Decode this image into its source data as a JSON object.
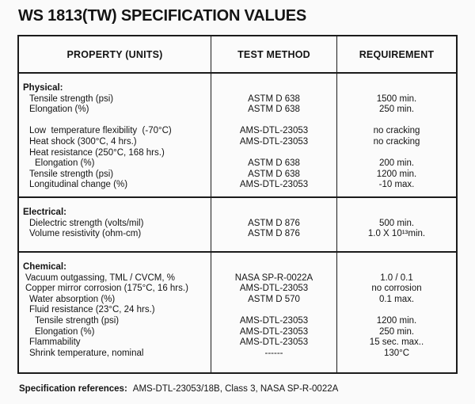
{
  "page": {
    "title": "WS 1813(TW) SPECIFICATION VALUES",
    "footer": {
      "label": "Specification references:",
      "text": "AMS-DTL-23053/18B, Class 3, NASA SP-R-0022A"
    }
  },
  "table": {
    "headers": [
      "PROPERTY (UNITS)",
      "TEST METHOD",
      "REQUIREMENT"
    ],
    "sections": [
      {
        "name": "physical",
        "rows": [
          {
            "property": "Physical:",
            "indent": 0,
            "header": true,
            "method": "",
            "requirement": ""
          },
          {
            "property": "Tensile strength (psi)",
            "indent": 2,
            "method": "ASTM D 638",
            "requirement": "1500 min."
          },
          {
            "property": "Elongation (%)",
            "indent": 2,
            "method": "ASTM D 638",
            "requirement": "250 min."
          },
          {
            "property": "",
            "indent": 0,
            "method": "",
            "requirement": ""
          },
          {
            "property": "Low  temperature flexibility  (-70°C)",
            "indent": 2,
            "method": "AMS-DTL-23053",
            "requirement": "no cracking"
          },
          {
            "property": "Heat shock (300°C, 4 hrs.)",
            "indent": 2,
            "method": "AMS-DTL-23053",
            "requirement": "no cracking"
          },
          {
            "property": "Heat resistance (250°C, 168 hrs.)",
            "indent": 2,
            "method": "",
            "requirement": ""
          },
          {
            "property": "Elongation (%)",
            "indent": 3,
            "method": "ASTM D 638",
            "requirement": "200 min."
          },
          {
            "property": "Tensile strength (psi)",
            "indent": 2,
            "method": "ASTM D 638",
            "requirement": "1200 min."
          },
          {
            "property": "Longitudinal change (%)",
            "indent": 2,
            "method": "AMS-DTL-23053",
            "requirement": "-10 max."
          }
        ]
      },
      {
        "name": "electrical",
        "rows": [
          {
            "property": "Electrical:",
            "indent": 0,
            "header": true,
            "method": "",
            "requirement": ""
          },
          {
            "property": "Dielectric strength (volts/mil)",
            "indent": 2,
            "method": "ASTM D 876",
            "requirement": "500 min."
          },
          {
            "property": "Volume resistivity (ohm-cm)",
            "indent": 2,
            "method": "ASTM D 876",
            "requirement": "1.0 X 10¹³min."
          }
        ]
      },
      {
        "name": "chemical",
        "rows": [
          {
            "property": "Chemical:",
            "indent": 0,
            "header": true,
            "method": "",
            "requirement": ""
          },
          {
            "property": "Vacuum outgassing, TML / CVCM, %",
            "indent": 1,
            "method": "NASA SP-R-0022A",
            "requirement": "1.0 / 0.1"
          },
          {
            "property": "Copper mirror corrosion (175°C, 16 hrs.)",
            "indent": 1,
            "method": "AMS-DTL-23053",
            "requirement": "no corrosion"
          },
          {
            "property": "Water absorption (%)",
            "indent": 2,
            "method": "ASTM D 570",
            "requirement": "0.1 max."
          },
          {
            "property": "Fluid resistance (23°C, 24 hrs.)",
            "indent": 2,
            "method": "",
            "requirement": ""
          },
          {
            "property": "Tensile strength (psi)",
            "indent": 3,
            "method": "AMS-DTL-23053",
            "requirement": "1200 min."
          },
          {
            "property": "Elongation (%)",
            "indent": 3,
            "method": "AMS-DTL-23053",
            "requirement": "250 min."
          },
          {
            "property": "Flammability",
            "indent": 2,
            "method": "AMS-DTL-23053",
            "requirement": "15 sec. max.."
          },
          {
            "property": "Shrink temperature, nominal",
            "indent": 2,
            "method": "------",
            "requirement": "130°C"
          }
        ]
      }
    ]
  }
}
